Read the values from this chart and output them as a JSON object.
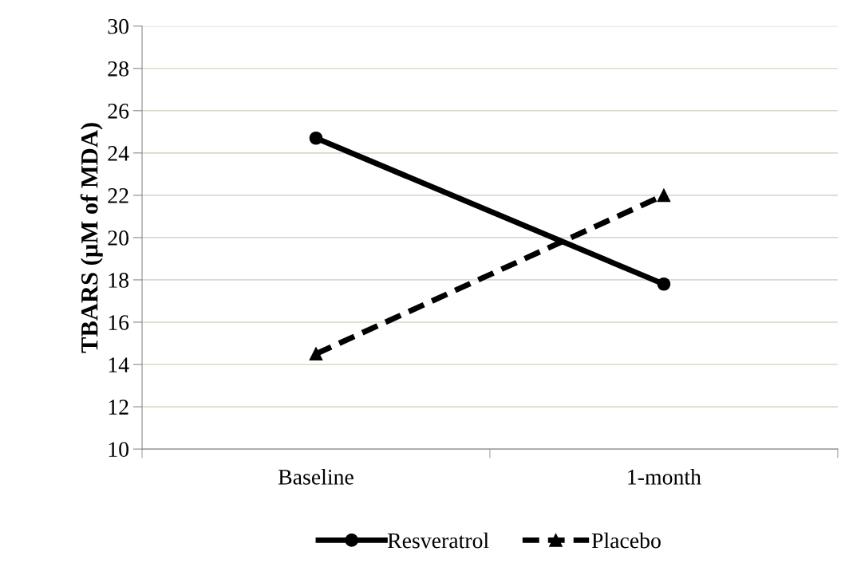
{
  "chart_data": {
    "type": "line",
    "ylabel": "TBARS (µM of MDA)",
    "categories": [
      "Baseline",
      "1-month"
    ],
    "series": [
      {
        "name": "Resveratrol",
        "color": "#000000",
        "values": [
          24.7,
          17.8
        ],
        "marker": "circle",
        "line_style": "solid"
      },
      {
        "name": "Placebo",
        "color": "#000000",
        "values": [
          14.5,
          22.0
        ],
        "marker": "triangle",
        "line_style": "dashed"
      }
    ],
    "ylim": [
      10,
      30
    ],
    "yticks": [
      10,
      12,
      14,
      16,
      18,
      20,
      22,
      24,
      26,
      28,
      30
    ],
    "grid": "y",
    "legend": "bottom"
  }
}
